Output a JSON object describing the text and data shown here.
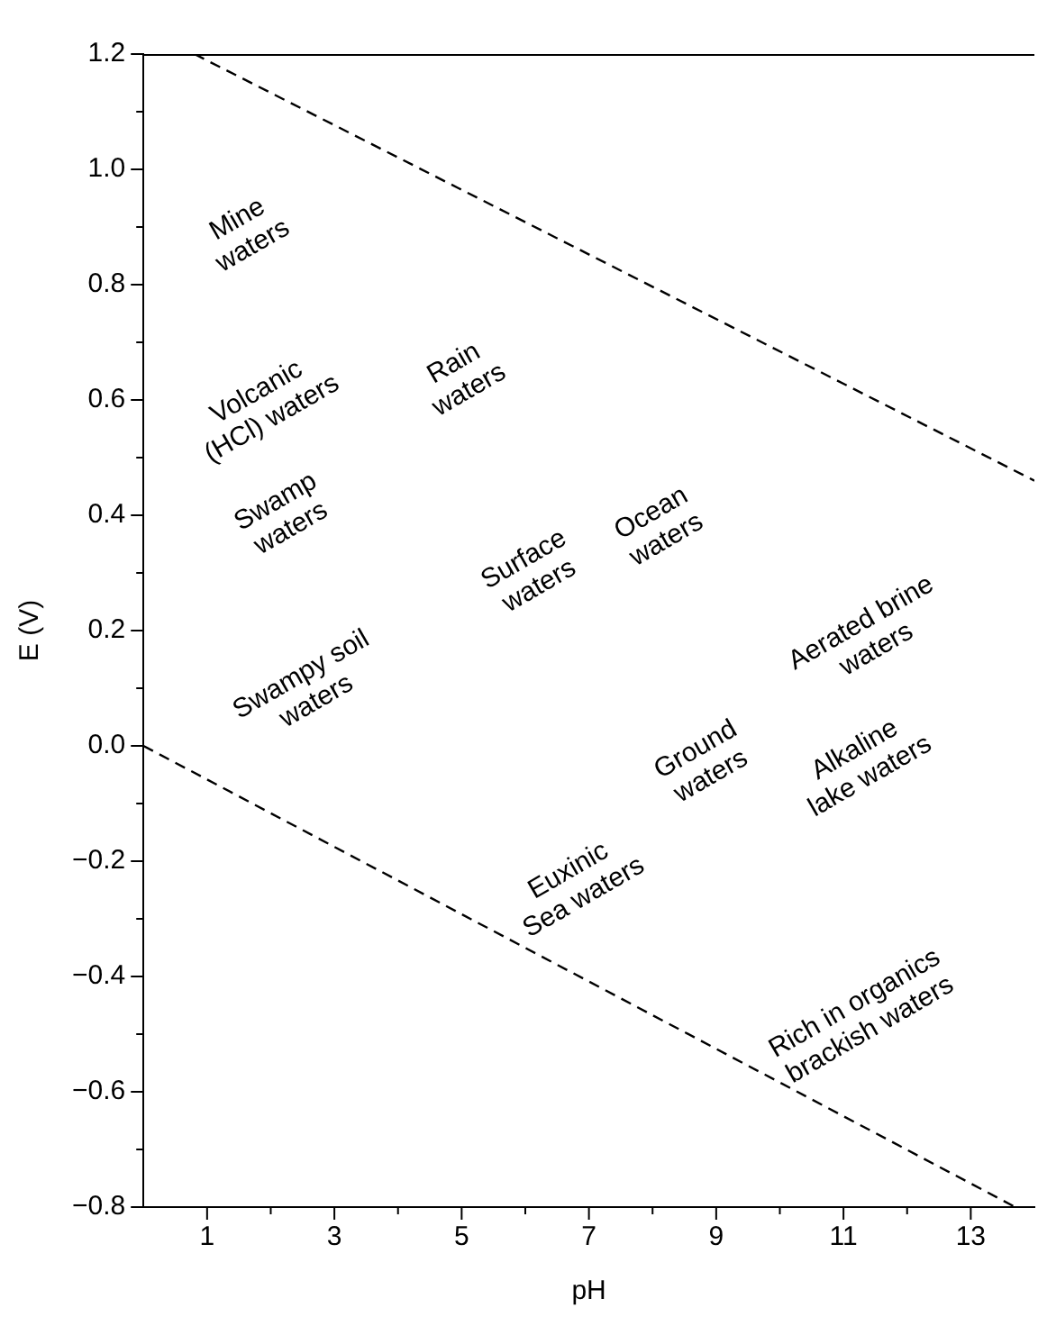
{
  "chart_data": {
    "type": "line",
    "xlabel": "pH",
    "ylabel": "E (V)",
    "xlim": [
      0,
      14
    ],
    "ylim": [
      -0.8,
      1.2
    ],
    "xticks": [
      1,
      {
        "value": 2,
        "label": null
      },
      3,
      {
        "value": 4,
        "label": null
      },
      5,
      {
        "value": 6,
        "label": null
      },
      7,
      {
        "value": 8,
        "label": null
      },
      9,
      {
        "value": 10,
        "label": null
      },
      11,
      {
        "value": 12,
        "label": null
      },
      13
    ],
    "yticks": [
      {
        "value": -0.8,
        "label": "−0.8"
      },
      {
        "value": -0.7,
        "label": null
      },
      {
        "value": -0.6,
        "label": "−0.6"
      },
      {
        "value": -0.5,
        "label": null
      },
      {
        "value": -0.4,
        "label": "−0.4"
      },
      {
        "value": -0.3,
        "label": null
      },
      {
        "value": -0.2,
        "label": "−0.2"
      },
      {
        "value": -0.1,
        "label": null
      },
      {
        "value": 0,
        "label": "0.0"
      },
      {
        "value": 0.1,
        "label": null
      },
      {
        "value": 0.2,
        "label": "0.2"
      },
      {
        "value": 0.3,
        "label": null
      },
      {
        "value": 0.4,
        "label": "0.4"
      },
      {
        "value": 0.5,
        "label": null
      },
      {
        "value": 0.6,
        "label": "0.6"
      },
      {
        "value": 0.7,
        "label": null
      },
      {
        "value": 0.8,
        "label": "0.8"
      },
      {
        "value": 0.9,
        "label": null
      },
      {
        "value": 1.0,
        "label": "1.0"
      },
      {
        "value": 1.1,
        "label": null
      },
      {
        "value": 1.2,
        "label": "1.2"
      }
    ],
    "grid": false,
    "legend": false,
    "marker": "none",
    "line_style": "dashed",
    "series": [
      {
        "color": "#000000",
        "x": [
          0.8,
          14
        ],
        "values": [
          1.2,
          0.46
        ]
      },
      {
        "color": "#000000",
        "x": [
          0,
          13.7
        ],
        "values": [
          0,
          -0.8
        ]
      }
    ],
    "annotations": [
      "Mine\nwaters",
      "Volcanic\n(HCl) waters",
      "Rain\nwaters",
      "Ocean\nwaters",
      "Swamp\nwaters",
      "Surface\nwaters",
      "Aerated brine\nwaters",
      "Swampy soil\nwaters",
      "Ground\nwaters",
      "Alkaline\nlake waters",
      "Euxinic\nSea waters",
      "Rich in organics\nbrackish waters"
    ]
  }
}
